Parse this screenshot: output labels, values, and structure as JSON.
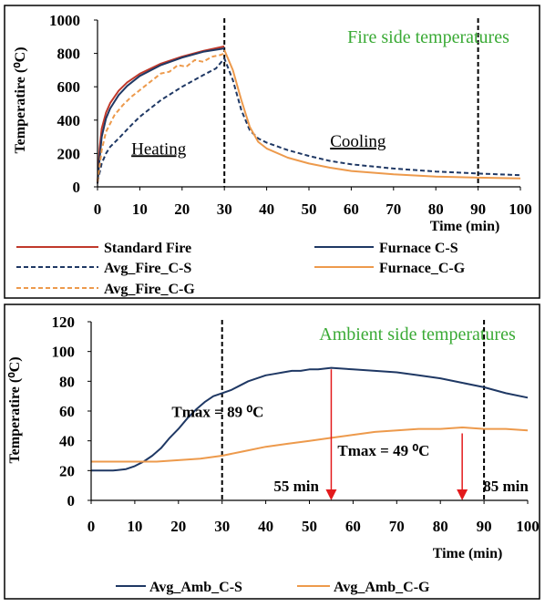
{
  "chart_data": [
    {
      "type": "line",
      "title": "Fire side temperatures",
      "xlabel": "Time (min)",
      "ylabel": "Temperatire (⁰C)",
      "xlim": [
        0,
        100
      ],
      "ylim": [
        0,
        1000
      ],
      "xticks": [
        "0",
        "10",
        "20",
        "30",
        "40",
        "50",
        "60",
        "70",
        "80",
        "90",
        "100"
      ],
      "yticks": [
        "0",
        "200",
        "400",
        "600",
        "800",
        "1000"
      ],
      "grid": false,
      "legend_placement": "bottom",
      "annotations": [
        {
          "text": "Heating",
          "x": 8,
          "y": 195,
          "style": "underline"
        },
        {
          "text": "Cooling",
          "x": 55,
          "y": 240,
          "style": "underline"
        }
      ],
      "vlines": [
        30,
        90
      ],
      "series": [
        {
          "name": "Standard Fire",
          "color": "#c0392b",
          "dash": "solid",
          "x": [
            0,
            0.5,
            1,
            2,
            3,
            5,
            7,
            10,
            15,
            20,
            25,
            30
          ],
          "y": [
            20,
            230,
            349,
            444,
            502,
            576,
            626,
            678,
            739,
            781,
            815,
            842
          ]
        },
        {
          "name": "Furnace C-S",
          "color": "#1f3864",
          "dash": "solid",
          "x": [
            0,
            0.5,
            1,
            2,
            3,
            5,
            7,
            10,
            15,
            20,
            25,
            30
          ],
          "y": [
            20,
            170,
            300,
            410,
            470,
            550,
            605,
            665,
            730,
            775,
            810,
            830
          ]
        },
        {
          "name": "Avg_Fire_C-S",
          "color": "#1f3864",
          "dash": "dashed",
          "x": [
            0,
            1,
            2,
            3,
            5,
            8,
            10,
            15,
            20,
            25,
            28,
            30,
            32,
            34,
            36,
            38,
            40,
            45,
            50,
            55,
            60,
            70,
            80,
            90,
            100
          ],
          "y": [
            30,
            140,
            200,
            240,
            290,
            370,
            420,
            520,
            600,
            670,
            710,
            770,
            640,
            460,
            340,
            290,
            265,
            220,
            185,
            155,
            135,
            110,
            92,
            80,
            70
          ]
        },
        {
          "name": "Furnace_C-G",
          "color": "#ed9a4c",
          "dash": "solid",
          "x": [
            30,
            32,
            34,
            36,
            38,
            40,
            45,
            50,
            55,
            60,
            70,
            80,
            90,
            100
          ],
          "y": [
            820,
            700,
            520,
            360,
            270,
            230,
            175,
            140,
            115,
            95,
            75,
            62,
            55,
            50
          ]
        },
        {
          "name": "Avg_Fire_C-G",
          "color": "#ed9a4c",
          "dash": "dashed",
          "x": [
            0,
            1,
            2,
            4,
            6,
            8,
            10,
            12,
            15,
            17,
            19,
            21,
            23,
            25,
            27,
            29,
            30
          ],
          "y": [
            30,
            220,
            330,
            430,
            490,
            540,
            580,
            620,
            680,
            690,
            730,
            720,
            760,
            750,
            780,
            790,
            800
          ]
        }
      ]
    },
    {
      "type": "line",
      "title": "Ambient side temperatures",
      "xlabel": "Time (min)",
      "ylabel": "Temperatire (⁰C)",
      "xlim": [
        0,
        100
      ],
      "ylim": [
        0,
        120
      ],
      "xticks": [
        "0",
        "10",
        "20",
        "30",
        "40",
        "50",
        "60",
        "70",
        "80",
        "90",
        "100"
      ],
      "yticks": [
        "0",
        "20",
        "40",
        "60",
        "80",
        "100",
        "120"
      ],
      "grid": false,
      "legend_placement": "bottom",
      "vlines": [
        30,
        90
      ],
      "annotations": [
        {
          "text": "Tmax =  89 ⁰C",
          "x": 29,
          "y": 56
        },
        {
          "text": "Tmax =  49 ⁰C",
          "x": 67,
          "y": 30
        },
        {
          "text": "55 min",
          "x": 47,
          "y": 6
        },
        {
          "text": "85 min",
          "x": 95,
          "y": 6
        }
      ],
      "arrows": [
        {
          "x": 55,
          "y_from": 88,
          "y_to": 0,
          "color": "#e31a1c"
        },
        {
          "x": 85,
          "y_from": 45,
          "y_to": 0,
          "color": "#e31a1c"
        }
      ],
      "series": [
        {
          "name": "Avg_Amb_C-S",
          "color": "#1f3864",
          "dash": "solid",
          "x": [
            0,
            5,
            8,
            10,
            12,
            14,
            16,
            18,
            20,
            22,
            24,
            26,
            28,
            30,
            32,
            34,
            36,
            38,
            40,
            42,
            44,
            46,
            48,
            50,
            52,
            55,
            60,
            65,
            70,
            75,
            80,
            85,
            90,
            95,
            100
          ],
          "y": [
            20,
            20,
            21,
            23,
            26,
            30,
            35,
            42,
            48,
            55,
            61,
            66,
            70,
            72,
            74,
            77,
            80,
            82,
            84,
            85,
            86,
            87,
            87,
            88,
            88,
            89,
            88,
            87,
            86,
            84,
            82,
            79,
            76,
            72,
            69
          ]
        },
        {
          "name": "Avg_Amb_C-G",
          "color": "#ed9a4c",
          "dash": "solid",
          "x": [
            0,
            10,
            15,
            20,
            25,
            30,
            35,
            40,
            45,
            50,
            55,
            60,
            65,
            70,
            75,
            80,
            85,
            90,
            95,
            100
          ],
          "y": [
            26,
            26,
            26,
            27,
            28,
            30,
            33,
            36,
            38,
            40,
            42,
            44,
            46,
            47,
            48,
            48,
            49,
            48,
            48,
            47
          ]
        }
      ]
    }
  ]
}
